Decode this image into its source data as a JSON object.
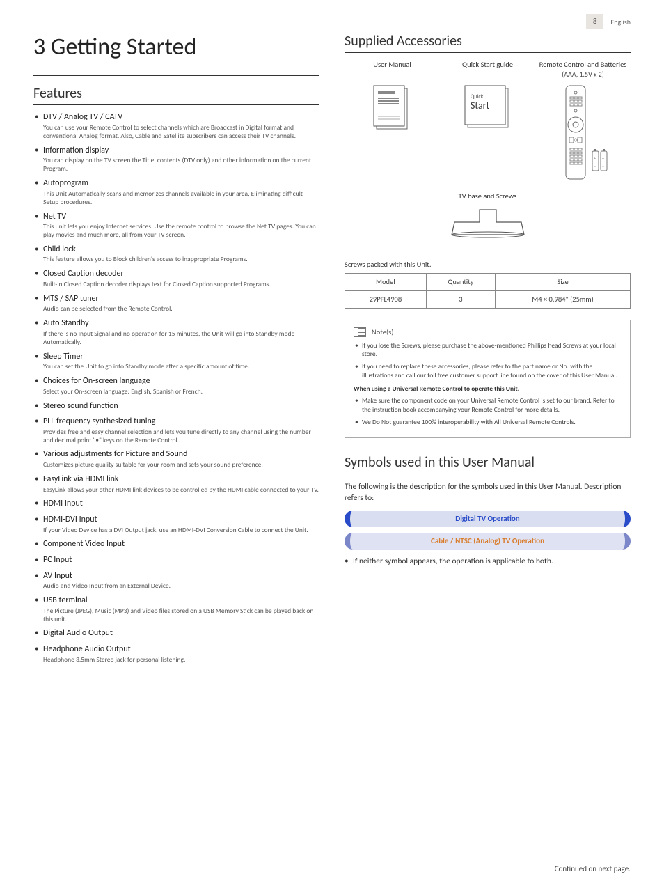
{
  "page": {
    "number": "8",
    "language": "English"
  },
  "chapter": {
    "number": "3",
    "title": "Getting Started"
  },
  "features": {
    "heading": "Features",
    "items": [
      {
        "title": "DTV / Analog TV / CATV",
        "desc": "You can use your Remote Control to select channels which are Broadcast in Digital format and conventional Analog format. Also, Cable and Satellite subscribers can access their TV channels."
      },
      {
        "title": "Information display",
        "desc": "You can display on the TV screen the Title, contents (DTV only) and other information on the current Program."
      },
      {
        "title": "Autoprogram",
        "desc": "This Unit Automatically scans and memorizes channels available in your area, Eliminating difficult Setup procedures."
      },
      {
        "title": "Net TV",
        "desc": "This unit lets you enjoy Internet services. Use the remote control to browse the Net TV pages. You can play movies and much more, all from your TV screen."
      },
      {
        "title": "Child lock",
        "desc": "This feature allows you to Block children's access to inappropriate Programs."
      },
      {
        "title": "Closed Caption decoder",
        "desc": "Built-in Closed Caption decoder displays text for Closed Caption supported Programs."
      },
      {
        "title": "MTS / SAP tuner",
        "desc": "Audio can be selected from the Remote Control."
      },
      {
        "title": "Auto Standby",
        "desc": "If there is no Input Signal and no operation for 15 minutes, the Unit will go into Standby mode Automatically."
      },
      {
        "title": "Sleep Timer",
        "desc": "You can set the Unit to go into Standby mode after a specific amount of time."
      },
      {
        "title": "Choices for On-screen language",
        "desc": "Select your On-screen language: English, Spanish or French."
      },
      {
        "title": "Stereo sound function",
        "desc": ""
      },
      {
        "title": "PLL frequency synthesized tuning",
        "desc": "Provides free and easy channel selection and lets you tune directly to any channel using the number and decimal point \"•\" keys on the Remote Control."
      },
      {
        "title": "Various adjustments for Picture and Sound",
        "desc": "Customizes picture quality suitable for your room and sets your sound preference."
      },
      {
        "title": "EasyLink via HDMI link",
        "desc": "EasyLink allows your other HDMI link devices to be controlled by the HDMI cable connected to your TV."
      },
      {
        "title": "HDMI Input",
        "desc": ""
      },
      {
        "title": "HDMI-DVI Input",
        "desc": "If your Video Device has a DVI Output jack, use an HDMI-DVI Conversion Cable to connect the Unit."
      },
      {
        "title": "Component Video Input",
        "desc": ""
      },
      {
        "title": "PC Input",
        "desc": ""
      },
      {
        "title": "AV Input",
        "desc": "Audio and Video Input from an External Device."
      },
      {
        "title": "USB terminal",
        "desc": "The Picture (JPEG), Music (MP3) and Video files stored on a USB Memory Stick can be played back on this unit."
      },
      {
        "title": "Digital Audio Output",
        "desc": ""
      },
      {
        "title": "Headphone Audio Output",
        "desc": "Headphone 3.5mm Stereo jack for personal listening."
      }
    ]
  },
  "accessories": {
    "heading": "Supplied Accessories",
    "labels": {
      "manual": "User Manual",
      "quickstart": "Quick Start guide",
      "remote": "Remote Control and Batteries",
      "remote_sub": "(AAA, 1.5V x 2)",
      "tvbase": "TV base and Screws",
      "quick_word": "Quick",
      "start_word": "Start"
    },
    "screws_caption": "Screws packed with this Unit.",
    "table": {
      "headers": [
        "Model",
        "Quantity",
        "Size"
      ],
      "row": [
        "29PFL4908",
        "3",
        "M4 × 0.984\" (25mm)"
      ]
    }
  },
  "notes": {
    "label": "Note(s)",
    "items_before": [
      "If you lose the Screws, please purchase the above-mentioned Phillips head Screws at your local store.",
      "If you need to replace these accessories, please refer to the part name or No. with the illustrations and call our toll free customer support line found on the cover of this User Manual."
    ],
    "bold_line": "When using a Universal Remote Control to operate this Unit.",
    "items_after": [
      "Make sure the component code on your Universal Remote Control is set to our brand. Refer to the instruction book accompanying your Remote Control for more details.",
      "We Do Not guarantee 100% interoperability with All Universal Remote Controls."
    ]
  },
  "symbols": {
    "heading": "Symbols used in this User Manual",
    "intro": "The following is the description for the symbols used in this User Manual. Description refers to:",
    "digital": "Digital TV Operation",
    "analog": "Cable / NTSC (Analog) TV Operation",
    "neither": "If neither symbol appears, the operation is applicable to both."
  },
  "footer": "Continued on next page."
}
